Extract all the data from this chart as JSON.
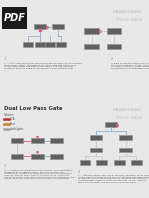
{
  "bg_color": "#e8e8e8",
  "page_bg": "#ffffff",
  "pdf_bg": "#1a1a1a",
  "header_color": "#c8c8c8",
  "box_color": "#606060",
  "box_edge_color": "#909090",
  "pink_color": "#e06080",
  "blue_color": "#80a8c8",
  "yellow_color": "#d4a020",
  "red_color": "#c03030",
  "orange_color": "#d08020",
  "gray_color": "#a0a0a0",
  "text_color": "#555555",
  "text_dark": "#333333",
  "legend_items": [
    "VCA",
    "filter",
    "both/gate"
  ],
  "legend_colors": [
    "#c03030",
    "#d08020",
    "#a0a0a0"
  ]
}
